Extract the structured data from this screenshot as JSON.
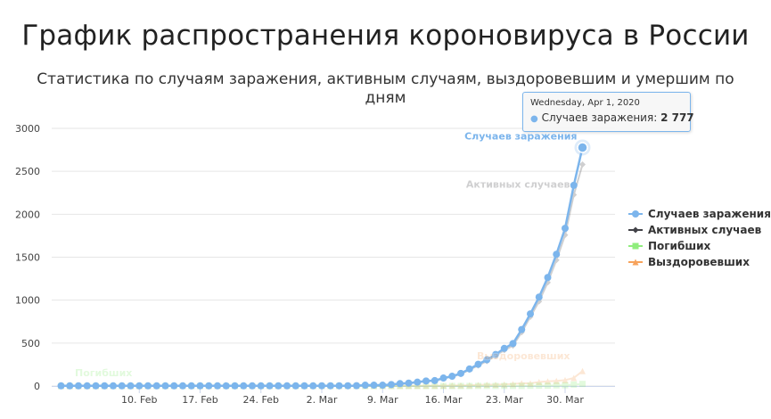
{
  "title": "График распространения короновируса в России",
  "subtitle": "Статистика по случаям заражения, активным случаям, выздоровевшим и умершим по дням",
  "tooltip": {
    "date": "Wednesday, Apr 1, 2020",
    "series_label": "Случаев заражения:",
    "value": "2 777"
  },
  "colors": {
    "infected": "#7cb5ec",
    "active": "#434348",
    "deaths": "#90ed7d",
    "recovered": "#f7a35c",
    "grid": "#e6e6e6"
  },
  "chart_data": {
    "type": "line",
    "ylim": [
      0,
      3000
    ],
    "yticks": [
      "0",
      "500",
      "1000",
      "1500",
      "2000",
      "2500",
      "3000"
    ],
    "xtick_labels": [
      "10. Feb",
      "17. Feb",
      "24. Feb",
      "2. Mar",
      "9. Mar",
      "16. Mar",
      "23. Mar",
      "30. Mar"
    ],
    "x_start": "2020-02-01",
    "x_end": "2020-04-01",
    "legend_position": "right",
    "series": [
      {
        "name": "Случаев заражения",
        "color": "#7cb5ec",
        "marker": "circle",
        "end_label": "Случаев заражения",
        "values": [
          2,
          2,
          2,
          2,
          2,
          2,
          2,
          2,
          2,
          2,
          2,
          2,
          2,
          2,
          2,
          2,
          2,
          2,
          2,
          2,
          2,
          2,
          2,
          2,
          2,
          2,
          2,
          2,
          2,
          2,
          3,
          3,
          3,
          3,
          4,
          10,
          10,
          10,
          17,
          28,
          34,
          45,
          59,
          63,
          93,
          114,
          147,
          199,
          253,
          306,
          367,
          438,
          495,
          658,
          840,
          1036,
          1264,
          1534,
          1836,
          2337,
          2777
        ]
      },
      {
        "name": "Активных случаев",
        "color": "#434348",
        "marker": "diamond",
        "end_label": "Активных случаев",
        "values": [
          2,
          2,
          2,
          2,
          2,
          2,
          2,
          2,
          2,
          2,
          2,
          0,
          0,
          0,
          0,
          0,
          0,
          0,
          0,
          0,
          0,
          0,
          0,
          0,
          0,
          0,
          0,
          0,
          0,
          0,
          1,
          1,
          1,
          1,
          2,
          7,
          7,
          7,
          14,
          25,
          31,
          42,
          55,
          59,
          88,
          108,
          138,
          189,
          239,
          289,
          350,
          417,
          470,
          625,
          806,
          985,
          1206,
          1466,
          1758,
          2226,
          2579
        ]
      },
      {
        "name": "Погибших",
        "color": "#90ed7d",
        "marker": "square",
        "end_label": "Погибших",
        "values": [
          0,
          0,
          0,
          0,
          0,
          0,
          0,
          0,
          0,
          0,
          0,
          0,
          0,
          0,
          0,
          0,
          0,
          0,
          0,
          0,
          0,
          0,
          0,
          0,
          0,
          0,
          0,
          0,
          0,
          0,
          0,
          0,
          0,
          0,
          0,
          0,
          0,
          0,
          0,
          0,
          0,
          0,
          0,
          0,
          0,
          0,
          0,
          0,
          1,
          1,
          1,
          1,
          1,
          1,
          3,
          4,
          4,
          8,
          9,
          17,
          24
        ]
      },
      {
        "name": "Выздоровевших",
        "color": "#f7a35c",
        "marker": "triangle",
        "end_label": "Выздоровевших",
        "values": [
          0,
          0,
          0,
          0,
          0,
          0,
          0,
          0,
          0,
          0,
          0,
          2,
          2,
          2,
          2,
          2,
          2,
          2,
          2,
          2,
          2,
          2,
          2,
          2,
          2,
          2,
          2,
          2,
          2,
          2,
          2,
          2,
          2,
          2,
          2,
          3,
          3,
          3,
          3,
          3,
          3,
          3,
          4,
          4,
          5,
          6,
          8,
          9,
          13,
          16,
          16,
          20,
          24,
          32,
          31,
          47,
          54,
          60,
          69,
          94,
          174
        ]
      }
    ]
  }
}
